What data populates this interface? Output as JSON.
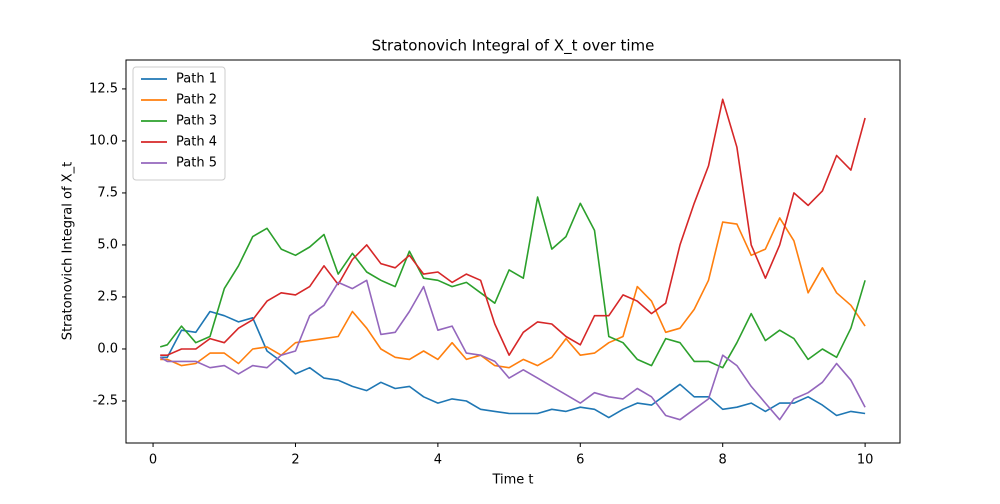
{
  "chart_data": {
    "type": "line",
    "title": "Stratonovich Integral of X_t over time",
    "x_label": "Time t",
    "y_label": "Stratonovich Integral of X_t",
    "x": [
      0.1,
      0.2,
      0.4,
      0.6,
      0.8,
      1.0,
      1.2,
      1.4,
      1.6,
      1.8,
      2.0,
      2.2,
      2.4,
      2.6,
      2.8,
      3.0,
      3.2,
      3.4,
      3.6,
      3.8,
      4.0,
      4.2,
      4.4,
      4.6,
      4.8,
      5.0,
      5.2,
      5.4,
      5.6,
      5.8,
      6.0,
      6.2,
      6.4,
      6.6,
      6.8,
      7.0,
      7.2,
      7.4,
      7.6,
      7.8,
      8.0,
      8.2,
      8.4,
      8.6,
      8.8,
      9.0,
      9.2,
      9.4,
      9.6,
      9.8,
      10.0
    ],
    "series": [
      {
        "name": "Path 1",
        "color": "#1f77b4",
        "values": [
          -0.4,
          -0.4,
          0.9,
          0.8,
          1.8,
          1.6,
          1.3,
          1.5,
          -0.1,
          -0.6,
          -1.2,
          -0.9,
          -1.4,
          -1.5,
          -1.8,
          -2.0,
          -1.6,
          -1.9,
          -1.8,
          -2.3,
          -2.6,
          -2.4,
          -2.5,
          -2.9,
          -3.0,
          -3.1,
          -3.1,
          -3.1,
          -2.9,
          -3.0,
          -2.8,
          -2.9,
          -3.3,
          -2.9,
          -2.6,
          -2.7,
          -2.2,
          -1.7,
          -2.3,
          -2.3,
          -2.9,
          -2.8,
          -2.6,
          -3.0,
          -2.6,
          -2.6,
          -2.3,
          -2.7,
          -3.2,
          -3.0,
          -3.1
        ]
      },
      {
        "name": "Path 2",
        "color": "#ff7f0e",
        "values": [
          -0.5,
          -0.5,
          -0.8,
          -0.7,
          -0.2,
          -0.2,
          -0.7,
          0.0,
          0.1,
          -0.3,
          0.3,
          0.4,
          0.5,
          0.6,
          1.8,
          1.0,
          0.0,
          -0.4,
          -0.5,
          -0.1,
          -0.5,
          0.3,
          -0.5,
          -0.3,
          -0.8,
          -0.9,
          -0.5,
          -0.8,
          -0.4,
          0.5,
          -0.3,
          -0.2,
          0.3,
          0.6,
          3.0,
          2.3,
          0.8,
          1.0,
          1.9,
          3.3,
          6.1,
          6.0,
          4.5,
          4.8,
          6.3,
          5.2,
          2.7,
          3.9,
          2.7,
          2.1,
          1.1
        ]
      },
      {
        "name": "Path 3",
        "color": "#2ca02c",
        "values": [
          0.1,
          0.2,
          1.1,
          0.3,
          0.6,
          2.9,
          4.0,
          5.4,
          5.8,
          4.8,
          4.5,
          4.9,
          5.5,
          3.6,
          4.6,
          3.7,
          3.3,
          3.0,
          4.7,
          3.4,
          3.3,
          3.0,
          3.2,
          2.7,
          2.2,
          3.8,
          3.4,
          7.3,
          4.8,
          5.4,
          7.0,
          5.7,
          0.6,
          0.3,
          -0.5,
          -0.8,
          0.5,
          0.3,
          -0.6,
          -0.6,
          -0.9,
          0.3,
          1.7,
          0.4,
          0.9,
          0.5,
          -0.5,
          0.0,
          -0.4,
          1.0,
          3.3
        ]
      },
      {
        "name": "Path 4",
        "color": "#d62728",
        "values": [
          -0.3,
          -0.3,
          0.0,
          0.0,
          0.5,
          0.3,
          1.0,
          1.4,
          2.3,
          2.7,
          2.6,
          3.0,
          4.0,
          3.1,
          4.3,
          5.0,
          4.1,
          3.9,
          4.5,
          3.6,
          3.7,
          3.2,
          3.6,
          3.3,
          1.2,
          -0.3,
          0.8,
          1.3,
          1.2,
          0.6,
          0.2,
          1.6,
          1.6,
          2.6,
          2.3,
          1.7,
          2.2,
          5.0,
          7.0,
          8.8,
          12.0,
          9.7,
          5.0,
          3.4,
          5.0,
          7.5,
          6.9,
          7.6,
          9.3,
          8.6,
          11.1
        ]
      },
      {
        "name": "Path 5",
        "color": "#9467bd",
        "values": [
          -0.4,
          -0.6,
          -0.6,
          -0.6,
          -0.9,
          -0.8,
          -1.2,
          -0.8,
          -0.9,
          -0.3,
          -0.1,
          1.6,
          2.1,
          3.2,
          2.9,
          3.3,
          0.7,
          0.8,
          1.8,
          3.0,
          0.9,
          1.1,
          -0.2,
          -0.3,
          -0.6,
          -1.4,
          -1.0,
          -1.4,
          -1.8,
          -2.2,
          -2.6,
          -2.1,
          -2.3,
          -2.4,
          -1.9,
          -2.3,
          -3.2,
          -3.4,
          -2.9,
          -2.4,
          -0.3,
          -0.8,
          -1.8,
          -2.6,
          -3.4,
          -2.4,
          -2.1,
          -1.6,
          -0.7,
          -1.5,
          -2.8
        ]
      }
    ],
    "xlim": [
      -0.38,
      10.49
    ],
    "ylim": [
      -4.52,
      13.89
    ],
    "xticks": [
      0,
      2,
      4,
      6,
      8,
      10
    ],
    "yticks": [
      -2.5,
      {
        "value": 0,
        "label": "0.0"
      },
      2.5,
      {
        "value": 5,
        "label": "5.0"
      },
      7.5,
      {
        "value": 10,
        "label": "10.0"
      },
      12.5
    ],
    "grid": false,
    "legend": "upper-left"
  }
}
